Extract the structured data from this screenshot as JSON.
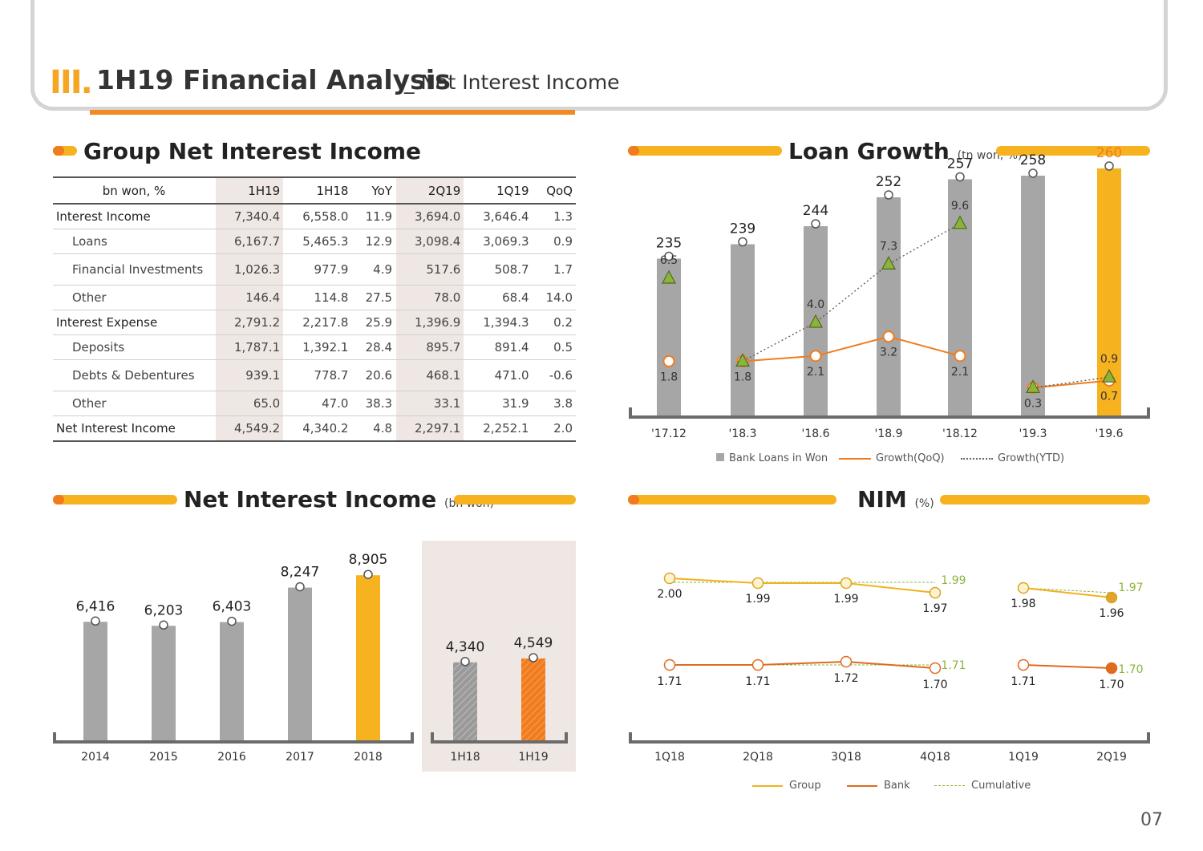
{
  "header": {
    "roman": "III.",
    "title": "1H19 Financial Analysis",
    "subtitle": "_ Net Interest Income"
  },
  "page_number": "07",
  "colors": {
    "orange": "#f7b21f",
    "dark_orange": "#f07c1d",
    "gray": "#a6a6a6",
    "green": "#8cb43c"
  },
  "table": {
    "title": "Group Net Interest Income",
    "headers": [
      "bn won, %",
      "1H19",
      "1H18",
      "YoY",
      "2Q19",
      "1Q19",
      "QoQ"
    ],
    "rows": [
      {
        "label": "Interest Income",
        "values": [
          "7,340.4",
          "6,558.0",
          "11.9",
          "3,694.0",
          "3,646.4",
          "1.3"
        ]
      },
      {
        "label": "Loans",
        "values": [
          "6,167.7",
          "5,465.3",
          "12.9",
          "3,098.4",
          "3,069.3",
          "0.9"
        ]
      },
      {
        "label": "Financial Investments",
        "values": [
          "1,026.3",
          "977.9",
          "4.9",
          "517.6",
          "508.7",
          "1.7"
        ]
      },
      {
        "label": "Other",
        "values": [
          "146.4",
          "114.8",
          "27.5",
          "78.0",
          "68.4",
          "14.0"
        ]
      },
      {
        "label": "Interest Expense",
        "values": [
          "2,791.2",
          "2,217.8",
          "25.9",
          "1,396.9",
          "1,394.3",
          "0.2"
        ]
      },
      {
        "label": "Deposits",
        "values": [
          "1,787.1",
          "1,392.1",
          "28.4",
          "895.7",
          "891.4",
          "0.5"
        ]
      },
      {
        "label": "Debts & Debentures",
        "values": [
          "939.1",
          "778.7",
          "20.6",
          "468.1",
          "471.0",
          "-0.6"
        ]
      },
      {
        "label": "Other",
        "values": [
          "65.0",
          "47.0",
          "38.3",
          "33.1",
          "31.9",
          "3.8"
        ]
      },
      {
        "label": "Net Interest Income",
        "values": [
          "4,549.2",
          "4,340.2",
          "4.8",
          "2,297.1",
          "2,252.1",
          "2.0"
        ]
      }
    ]
  },
  "loan_growth": {
    "title": "Loan Growth",
    "unit": "(tn won, %)",
    "legend": [
      "Bank Loans in Won",
      "Growth(QoQ)",
      "Growth(YTD)"
    ]
  },
  "nii": {
    "title": "Net Interest Income",
    "unit": "(bn won)"
  },
  "nim": {
    "title": "NIM",
    "unit": "(%)",
    "legend": [
      "Group",
      "Bank",
      "Cumulative"
    ]
  },
  "chart_data": [
    {
      "type": "bar",
      "id": "loan_growth",
      "title": "Loan Growth",
      "categories": [
        "'17.12",
        "'18.3",
        "'18.6",
        "'18.9",
        "'18.12",
        "'19.3",
        "'19.6"
      ],
      "series": [
        {
          "name": "Bank Loans in Won",
          "type": "bar",
          "values": [
            235,
            239,
            244,
            252,
            257,
            258,
            260
          ]
        },
        {
          "name": "Growth(QoQ)",
          "type": "line",
          "values": [
            1.8,
            1.8,
            2.1,
            3.2,
            2.1,
            0.3,
            0.7
          ]
        },
        {
          "name": "Growth(YTD)",
          "type": "line",
          "values": [
            6.5,
            1.8,
            4.0,
            7.3,
            9.6,
            0.3,
            0.9
          ]
        }
      ]
    },
    {
      "type": "bar",
      "id": "net_interest_income_annual",
      "title": "Net Interest Income",
      "categories": [
        "2014",
        "2015",
        "2016",
        "2017",
        "2018"
      ],
      "values": [
        6416,
        6203,
        6403,
        8247,
        8905
      ],
      "labels": [
        "6,416",
        "6,203",
        "6,403",
        "8,247",
        "8,905"
      ]
    },
    {
      "type": "bar",
      "id": "net_interest_income_half",
      "categories": [
        "1H18",
        "1H19"
      ],
      "values": [
        4340,
        4549
      ],
      "labels": [
        "4,340",
        "4,549"
      ]
    },
    {
      "type": "line",
      "id": "nim",
      "title": "NIM",
      "categories": [
        "1Q18",
        "2Q18",
        "3Q18",
        "4Q18",
        "1Q19",
        "2Q19"
      ],
      "series": [
        {
          "name": "Group",
          "values": [
            2.0,
            1.99,
            1.99,
            1.97,
            1.98,
            1.96
          ],
          "labels": [
            "2.00",
            "1.99",
            "1.99",
            "1.97",
            "1.98",
            "1.96"
          ]
        },
        {
          "name": "Bank",
          "values": [
            1.71,
            1.71,
            1.72,
            1.7,
            1.71,
            1.7
          ],
          "labels": [
            "1.71",
            "1.71",
            "1.72",
            "1.70",
            "1.71",
            "1.70"
          ]
        },
        {
          "name": "Cumulative",
          "group": [
            "1.99",
            "1.97"
          ],
          "bank": [
            "1.71",
            "1.70"
          ]
        }
      ]
    }
  ]
}
